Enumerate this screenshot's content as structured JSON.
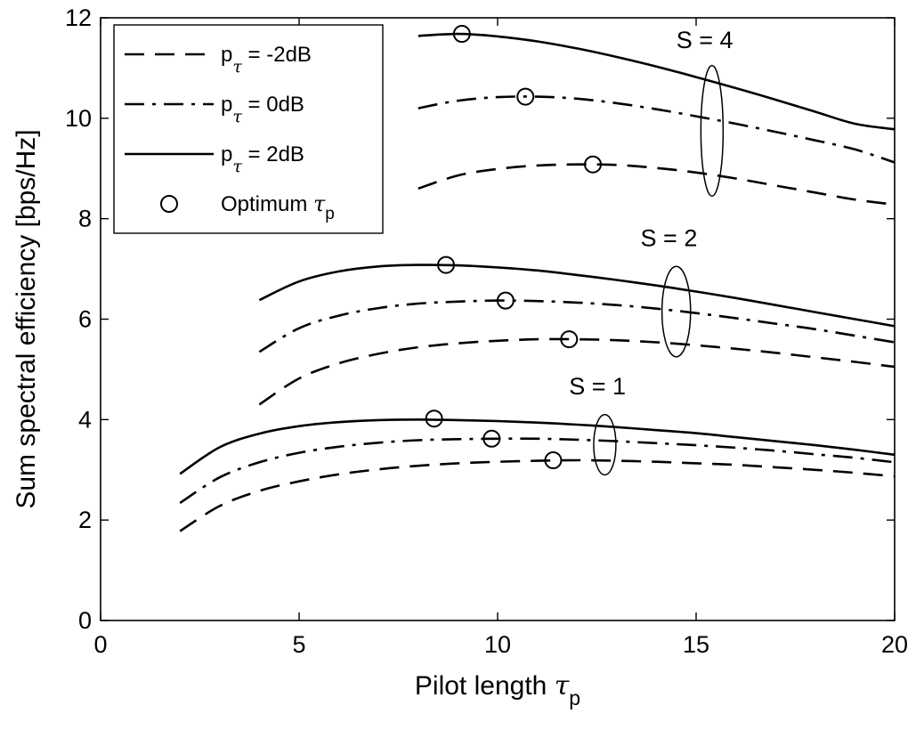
{
  "chart_data": {
    "type": "line",
    "xlabel": {
      "text": "Pilot length",
      "symbol": "τ",
      "sub": "p"
    },
    "ylabel": "Sum spectral efficiency [bps/Hz]",
    "xlim": [
      0,
      20
    ],
    "ylim": [
      0,
      12
    ],
    "xticks": [
      0,
      5,
      10,
      15,
      20
    ],
    "yticks": [
      0,
      2,
      4,
      6,
      8,
      10,
      12
    ],
    "grid": false,
    "legend": {
      "placement": "top-left",
      "entries": [
        {
          "key": "m2",
          "style": "dashed",
          "pre": "p",
          "sub": "τ",
          "post": " = -2dB"
        },
        {
          "key": "0",
          "style": "dashdot",
          "pre": "p",
          "sub": "τ",
          "post": " = 0dB"
        },
        {
          "key": "p2",
          "style": "solid",
          "pre": "p",
          "sub": "τ",
          "post": " = 2dB"
        },
        {
          "key": "opt",
          "style": "marker",
          "pre": "Optimum ",
          "sym": "τ",
          "sub": "p",
          "post": ""
        }
      ]
    },
    "groups": [
      {
        "label": "S = 1",
        "ellipse": {
          "x": 12.7,
          "y": 3.5,
          "rx": 0.28,
          "ry": 0.6
        },
        "label_pos": {
          "x": 11.8,
          "y": 4.5
        },
        "series": [
          {
            "style": "solid",
            "x": [
              2,
              3,
              4,
              5,
              6,
              7,
              8,
              9,
              10,
              11,
              12,
              13,
              14,
              15,
              16,
              17,
              18,
              19,
              20
            ],
            "y": [
              2.92,
              3.45,
              3.72,
              3.87,
              3.95,
              3.99,
              4.0,
              3.99,
              3.97,
              3.94,
              3.9,
              3.85,
              3.79,
              3.73,
              3.65,
              3.57,
              3.49,
              3.4,
              3.3
            ]
          },
          {
            "style": "dashdot",
            "x": [
              2,
              3,
              4,
              5,
              6,
              7,
              8,
              9,
              10,
              11,
              12,
              13,
              14,
              15,
              16,
              17,
              18,
              19,
              20
            ],
            "y": [
              2.34,
              2.85,
              3.15,
              3.34,
              3.46,
              3.54,
              3.59,
              3.61,
              3.62,
              3.62,
              3.6,
              3.57,
              3.53,
              3.49,
              3.44,
              3.38,
              3.31,
              3.24,
              3.15
            ]
          },
          {
            "style": "dashed",
            "x": [
              2,
              3,
              4,
              5,
              6,
              7,
              8,
              9,
              10,
              11,
              12,
              13,
              14,
              15,
              16,
              17,
              18,
              19,
              20
            ],
            "y": [
              1.78,
              2.28,
              2.58,
              2.77,
              2.91,
              3.01,
              3.08,
              3.13,
              3.16,
              3.18,
              3.19,
              3.18,
              3.16,
              3.13,
              3.1,
              3.05,
              3.0,
              2.94,
              2.87
            ]
          }
        ],
        "optimum": [
          {
            "x": 8.4,
            "y": 4.02
          },
          {
            "x": 9.85,
            "y": 3.62
          },
          {
            "x": 11.4,
            "y": 3.19
          }
        ]
      },
      {
        "label": "S = 2",
        "ellipse": {
          "x": 14.5,
          "y": 6.15,
          "rx": 0.36,
          "ry": 0.9
        },
        "label_pos": {
          "x": 13.6,
          "y": 7.45
        },
        "series": [
          {
            "style": "solid",
            "x": [
              4,
              5,
              6,
              7,
              8,
              9,
              10,
              11,
              12,
              13,
              14,
              15,
              16,
              17,
              18,
              19,
              20
            ],
            "y": [
              6.38,
              6.75,
              6.95,
              7.05,
              7.08,
              7.07,
              7.03,
              6.97,
              6.88,
              6.78,
              6.67,
              6.55,
              6.42,
              6.28,
              6.14,
              6.0,
              5.86
            ]
          },
          {
            "style": "dashdot",
            "x": [
              4,
              5,
              6,
              7,
              8,
              9,
              10,
              11,
              12,
              13,
              14,
              15,
              16,
              17,
              18,
              19,
              20
            ],
            "y": [
              5.35,
              5.82,
              6.07,
              6.22,
              6.31,
              6.35,
              6.37,
              6.36,
              6.33,
              6.28,
              6.21,
              6.12,
              6.02,
              5.91,
              5.8,
              5.67,
              5.54
            ]
          },
          {
            "style": "dashed",
            "x": [
              4,
              5,
              6,
              7,
              8,
              9,
              10,
              11,
              12,
              13,
              14,
              15,
              16,
              17,
              18,
              19,
              20
            ],
            "y": [
              4.3,
              4.82,
              5.12,
              5.31,
              5.44,
              5.52,
              5.57,
              5.6,
              5.6,
              5.58,
              5.54,
              5.48,
              5.41,
              5.33,
              5.24,
              5.15,
              5.05
            ]
          }
        ],
        "optimum": [
          {
            "x": 8.7,
            "y": 7.08
          },
          {
            "x": 10.2,
            "y": 6.37
          },
          {
            "x": 11.8,
            "y": 5.6
          }
        ]
      },
      {
        "label": "S = 4",
        "ellipse": {
          "x": 15.4,
          "y": 9.75,
          "rx": 0.28,
          "ry": 1.3
        },
        "label_pos": {
          "x": 14.5,
          "y": 11.4
        },
        "series": [
          {
            "style": "solid",
            "x": [
              8,
              9,
              10,
              11,
              12,
              13,
              14,
              15,
              16,
              17,
              18,
              19,
              20
            ],
            "y": [
              11.64,
              11.68,
              11.63,
              11.53,
              11.39,
              11.22,
              11.03,
              10.82,
              10.6,
              10.37,
              10.13,
              9.89,
              9.78
            ]
          },
          {
            "style": "dashdot",
            "x": [
              8,
              9,
              10,
              11,
              12,
              13,
              14,
              15,
              16,
              17,
              18,
              19,
              20
            ],
            "y": [
              10.2,
              10.35,
              10.42,
              10.43,
              10.39,
              10.3,
              10.18,
              10.04,
              9.89,
              9.73,
              9.56,
              9.38,
              9.12
            ]
          },
          {
            "style": "dashed",
            "x": [
              8,
              9,
              10,
              11,
              12,
              13,
              14,
              15,
              16,
              17,
              18,
              19,
              20
            ],
            "y": [
              8.6,
              8.86,
              8.99,
              9.06,
              9.08,
              9.07,
              9.01,
              8.92,
              8.8,
              8.66,
              8.52,
              8.38,
              8.28
            ]
          }
        ],
        "optimum": [
          {
            "x": 9.1,
            "y": 11.68
          },
          {
            "x": 10.7,
            "y": 10.43
          },
          {
            "x": 12.4,
            "y": 9.08
          }
        ]
      }
    ]
  }
}
